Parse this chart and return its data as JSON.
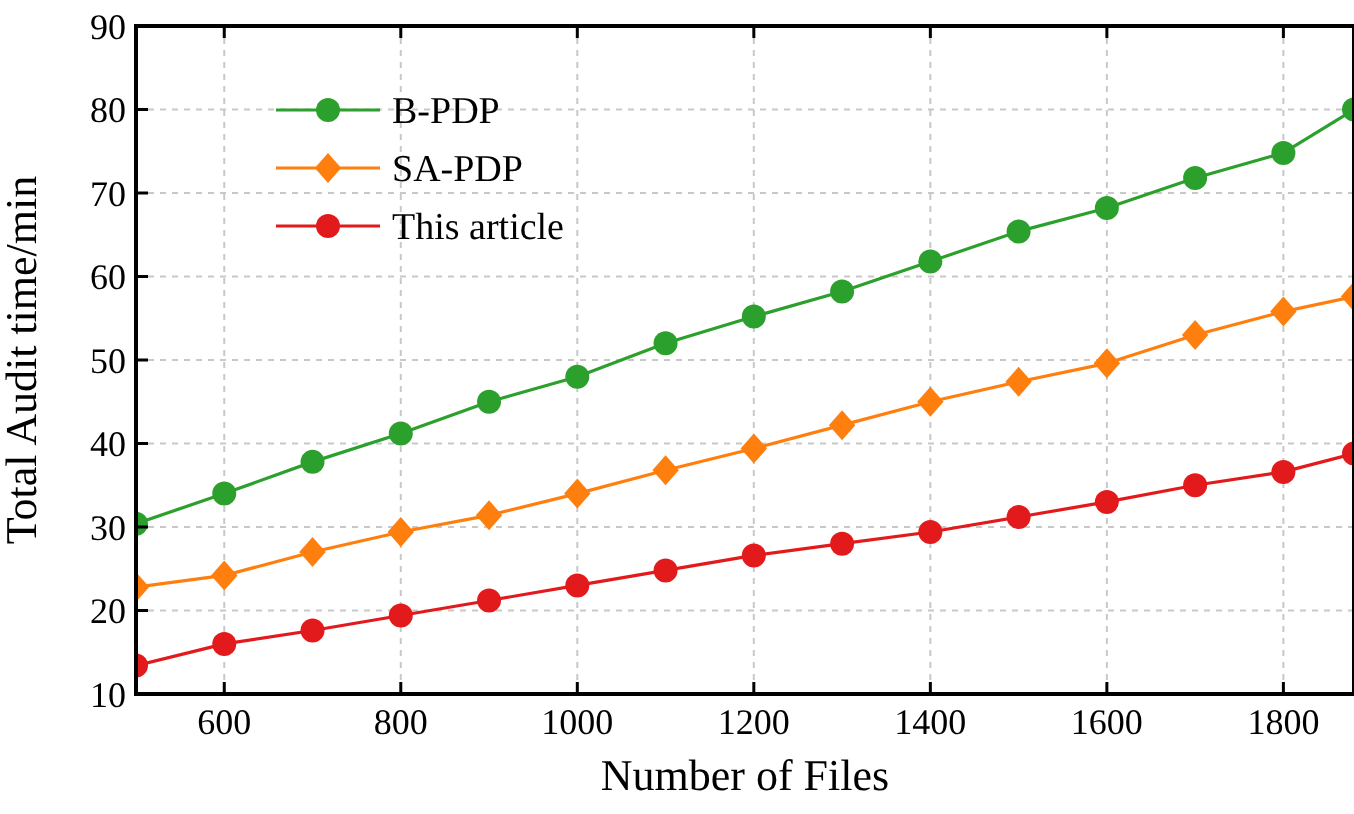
{
  "chart_data": {
    "type": "line",
    "xlabel": "Number of Files",
    "ylabel": "Total Audit time/min",
    "x": [
      500,
      600,
      700,
      800,
      900,
      1000,
      1100,
      1200,
      1300,
      1400,
      1500,
      1600,
      1700,
      1800,
      1880
    ],
    "xlim": [
      500,
      1880
    ],
    "xticks": [
      600,
      800,
      1000,
      1200,
      1400,
      1600,
      1800
    ],
    "ylim": [
      10,
      90
    ],
    "yticks": [
      10,
      20,
      30,
      40,
      50,
      60,
      70,
      80,
      90
    ],
    "grid": true,
    "legend": "top left",
    "line_style": "solid",
    "series": [
      {
        "name": "B-PDP",
        "color": "#2ca02c",
        "marker": "circle",
        "values": [
          30.4,
          34,
          37.8,
          41.2,
          45,
          48,
          52,
          55.2,
          58.2,
          61.8,
          65.4,
          68.2,
          71.8,
          74.8,
          80
        ]
      },
      {
        "name": "SA-PDP",
        "color": "#ff7f0e",
        "marker": "diamond",
        "values": [
          22.8,
          24.2,
          27,
          29.4,
          31.4,
          34,
          36.8,
          39.4,
          42.2,
          45,
          47.4,
          49.6,
          53,
          55.8,
          57.6
        ]
      },
      {
        "name": "This article",
        "color": "#e31a1c",
        "marker": "circle",
        "values": [
          13.4,
          16,
          17.6,
          19.4,
          21.2,
          23,
          24.8,
          26.6,
          28,
          29.4,
          31.2,
          33,
          35,
          36.6,
          38.8
        ]
      }
    ]
  }
}
